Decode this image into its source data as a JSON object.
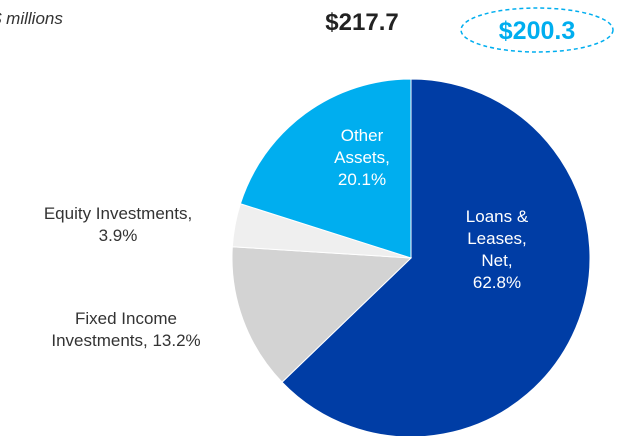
{
  "chart_data": {
    "type": "pie",
    "subtitle": "$ millions",
    "annotations": [
      "$217.7",
      "$200.3"
    ],
    "categories": [
      "Loans & Leases, Net,",
      "Fixed Income Investments,",
      "Equity Investments,",
      "Other Assets,"
    ],
    "values": [
      62.8,
      13.2,
      3.9,
      20.1
    ],
    "value_labels": [
      "62.8%",
      "13.2%",
      "3.9%",
      "20.1%"
    ],
    "colors": [
      "#003da5",
      "#d3d3d3",
      "#efefef",
      "#00aeef"
    ]
  }
}
